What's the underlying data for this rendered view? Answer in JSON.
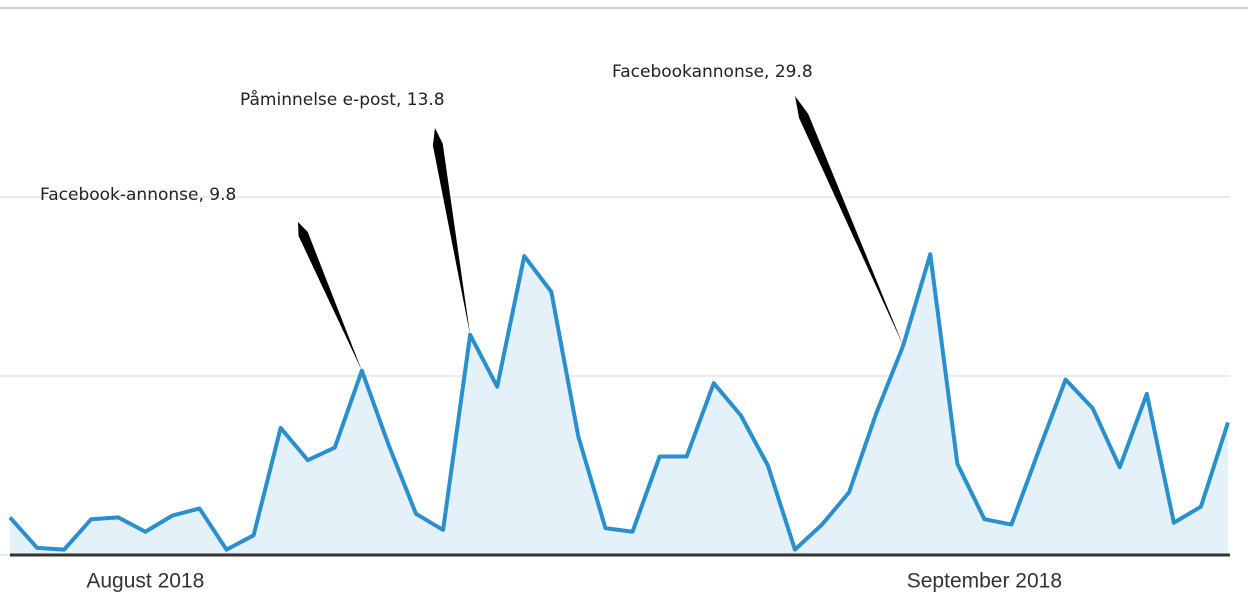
{
  "chart_data": {
    "type": "area",
    "categories": [
      null,
      null,
      null,
      null,
      null,
      "August 2018",
      null,
      null,
      null,
      null,
      null,
      null,
      null,
      null,
      null,
      null,
      null,
      null,
      null,
      null,
      null,
      null,
      null,
      null,
      null,
      null,
      null,
      null,
      null,
      null,
      null,
      null,
      null,
      null,
      null,
      null,
      "September 2018",
      null,
      null,
      null,
      null,
      null,
      null,
      null,
      null,
      null
    ],
    "values": [
      0.21,
      0.04,
      0.03,
      0.2,
      0.21,
      0.13,
      0.22,
      0.26,
      0.03,
      0.11,
      0.71,
      0.53,
      0.6,
      1.03,
      0.61,
      0.23,
      0.14,
      1.23,
      0.94,
      1.67,
      1.47,
      0.66,
      0.15,
      0.13,
      0.55,
      0.55,
      0.96,
      0.78,
      0.5,
      0.03,
      0.17,
      0.35,
      0.79,
      1.17,
      1.68,
      0.51,
      0.2,
      0.17,
      0.58,
      0.98,
      0.82,
      0.49,
      0.9,
      0.18,
      0.27,
      0.74
    ],
    "color": "#2a8fcd",
    "fill": "#e5f1f9",
    "ylim": [
      0,
      3
    ],
    "yticks": [
      0,
      1,
      2
    ],
    "grid": true,
    "annotations": [
      {
        "text": "Facebook-annonse, 9.8",
        "index": 13
      },
      {
        "text": "Påminnelse e-post, 13.8",
        "index": 17
      },
      {
        "text": "Facebookannonse, 29.8",
        "index": 33
      }
    ]
  }
}
